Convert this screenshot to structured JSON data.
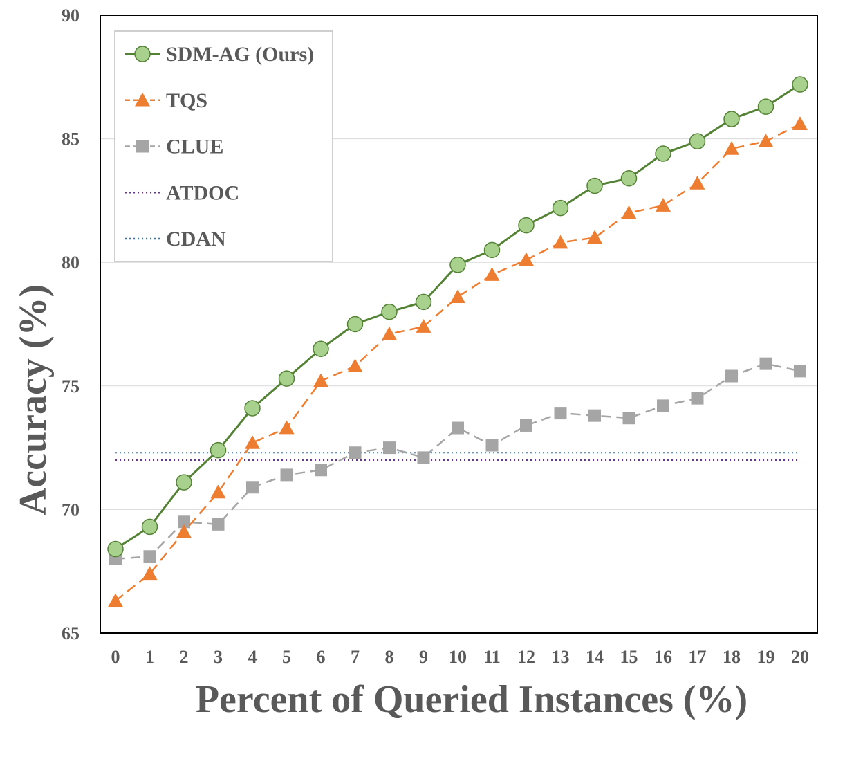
{
  "chart_data": {
    "type": "line",
    "xlabel": "Percent of Queried Instances (%)",
    "ylabel": "Accuracy (%)",
    "x": [
      0,
      1,
      2,
      3,
      4,
      5,
      6,
      7,
      8,
      9,
      10,
      11,
      12,
      13,
      14,
      15,
      16,
      17,
      18,
      19,
      20
    ],
    "xlim": [
      0,
      20
    ],
    "ylim": [
      65,
      90
    ],
    "yticks": [
      65,
      70,
      75,
      80,
      85,
      90
    ],
    "grid": "horizontal",
    "legend_position": "top-left",
    "series": [
      {
        "name": "SDM-AG (Ours)",
        "marker": "circle",
        "line_style": "solid",
        "line_color": "#548235",
        "marker_color": "#a9d18e",
        "values": [
          68.4,
          69.3,
          71.1,
          72.4,
          74.1,
          75.3,
          76.5,
          77.5,
          78.0,
          78.4,
          79.9,
          80.5,
          81.5,
          82.2,
          83.1,
          83.4,
          84.4,
          84.9,
          85.8,
          86.3,
          87.2
        ]
      },
      {
        "name": "TQS",
        "marker": "triangle",
        "line_style": "dashed",
        "line_color": "#ed7d31",
        "marker_color": "#ed7d31",
        "values": [
          66.3,
          67.4,
          69.1,
          70.7,
          72.7,
          73.3,
          75.2,
          75.8,
          77.1,
          77.4,
          78.6,
          79.5,
          80.1,
          80.8,
          81.0,
          82.0,
          82.3,
          83.2,
          84.6,
          84.9,
          85.6
        ]
      },
      {
        "name": "CLUE",
        "marker": "square",
        "line_style": "dashed",
        "line_color": "#a5a5a5",
        "marker_color": "#a5a5a5",
        "values": [
          68.0,
          68.1,
          69.5,
          69.4,
          70.9,
          71.4,
          71.6,
          72.3,
          72.5,
          72.1,
          73.3,
          72.6,
          73.4,
          73.9,
          73.8,
          73.7,
          74.2,
          74.5,
          75.4,
          75.9,
          75.6
        ]
      },
      {
        "name": "ATDOC",
        "marker": "none",
        "line_style": "dotted",
        "line_color": "#7030a0",
        "constant": 72.0
      },
      {
        "name": "CDAN",
        "marker": "none",
        "line_style": "dotted",
        "line_color": "#2e75b6",
        "constant": 72.3
      }
    ]
  }
}
